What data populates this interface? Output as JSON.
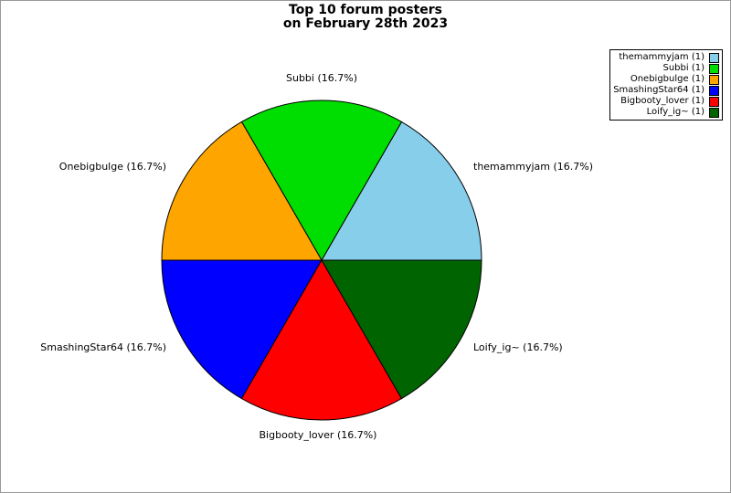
{
  "window": {
    "background": "#ffffff",
    "border_color": "#999999"
  },
  "title": {
    "line1": "Top 10 forum posters",
    "line2": "on February 28th 2023"
  },
  "chart_data": {
    "type": "pie",
    "title": "Top 10 forum posters on February 28th 2023",
    "legend_position": "top-right",
    "start_angle_deg": 0,
    "direction": "counterclockwise",
    "slices": [
      {
        "label": "themammyjam",
        "value": 1,
        "percent": "16.7%",
        "color": "#87CEEB",
        "callout": "themammyjam (16.7%)",
        "legend_label": "themammyjam (1)"
      },
      {
        "label": "Subbi",
        "value": 1,
        "percent": "16.7%",
        "color": "#00DD00",
        "callout": "Subbi (16.7%)",
        "legend_label": "Subbi (1)"
      },
      {
        "label": "Onebigbulge",
        "value": 1,
        "percent": "16.7%",
        "color": "#FFA500",
        "callout": "Onebigbulge (16.7%)",
        "legend_label": "Onebigbulge (1)"
      },
      {
        "label": "SmashingStar64",
        "value": 1,
        "percent": "16.7%",
        "color": "#0000FF",
        "callout": "SmashingStar64 (16.7%)",
        "legend_label": "SmashingStar64 (1)"
      },
      {
        "label": "Bigbooty_lover",
        "value": 1,
        "percent": "16.7%",
        "color": "#FF0000",
        "callout": "Bigbooty_lover (16.7%)",
        "legend_label": "Bigbooty_lover (1)"
      },
      {
        "label": "Loify_ig~",
        "value": 1,
        "percent": "16.7%",
        "color": "#006400",
        "callout": "Loify_ig~ (16.7%)",
        "legend_label": "Loify_ig~ (1)"
      }
    ]
  }
}
